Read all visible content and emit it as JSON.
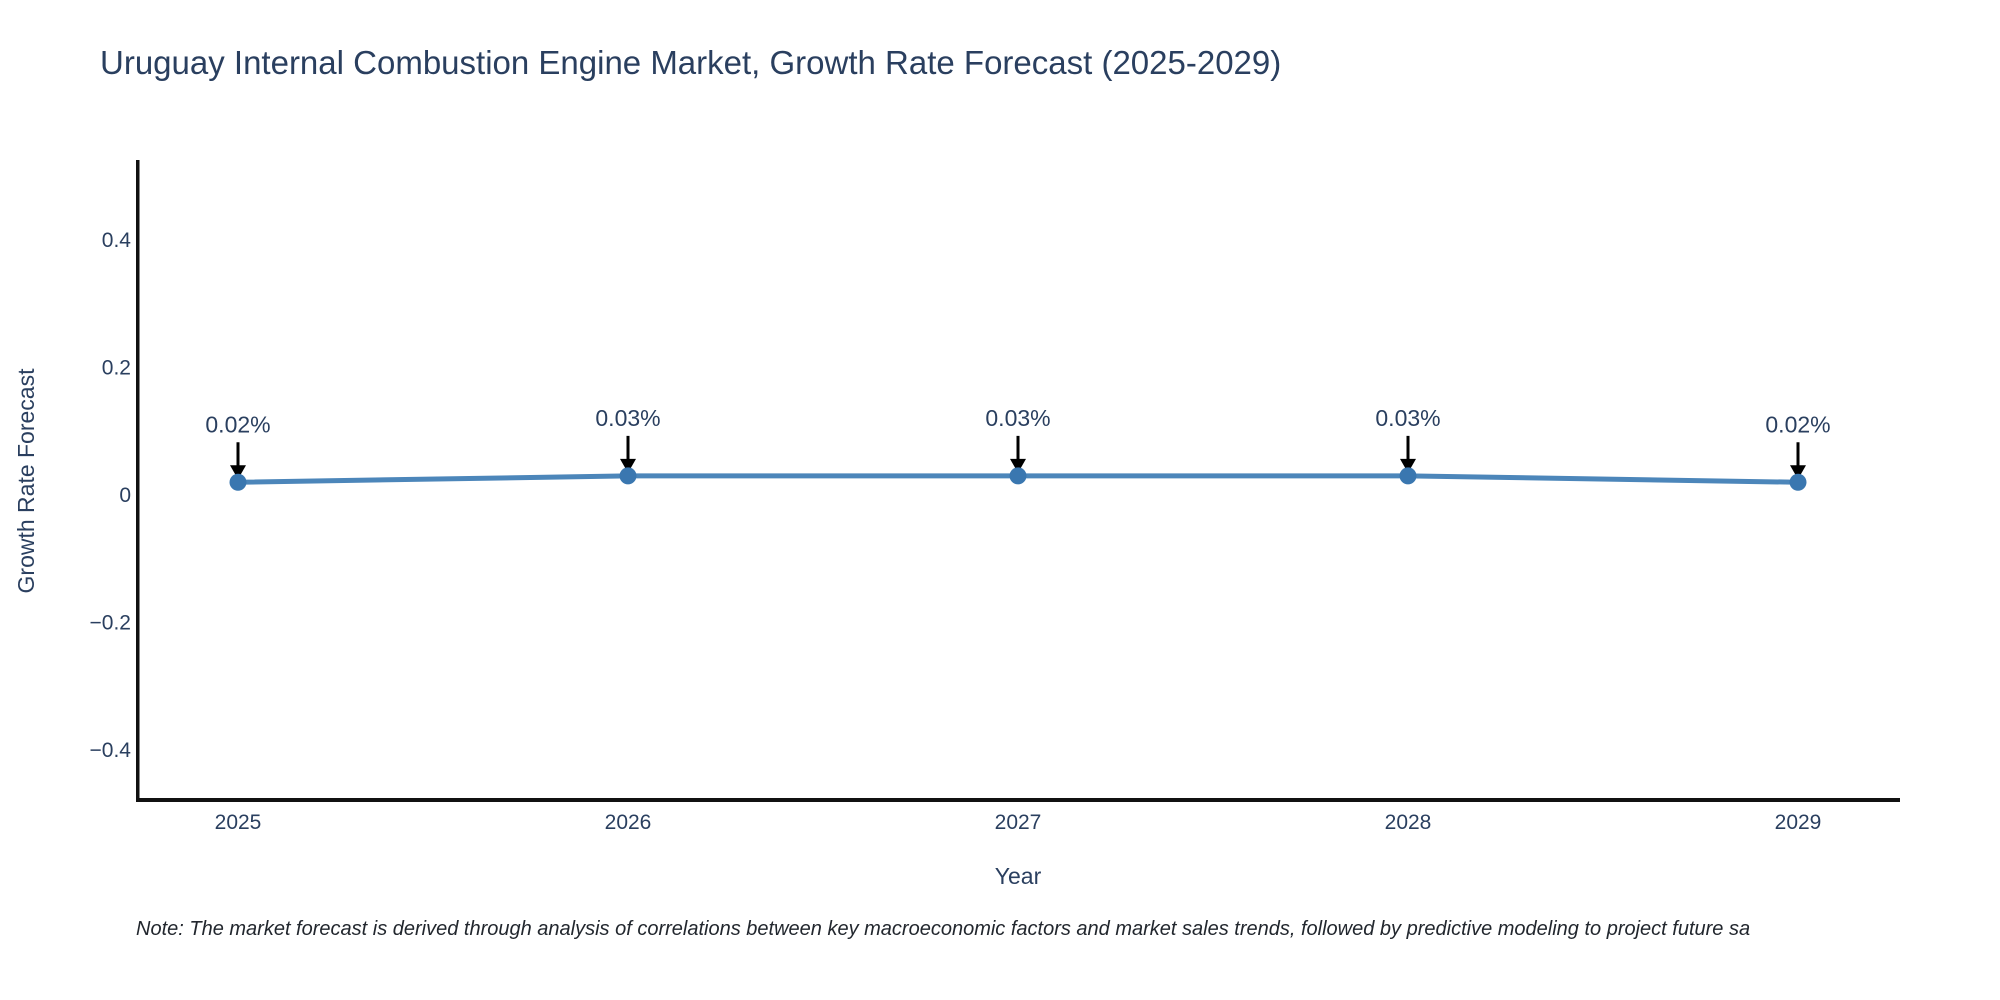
{
  "title": "Uruguay Internal Combustion Engine Market, Growth Rate Forecast (2025-2029)",
  "note": "Note: The market forecast is derived through analysis of correlations between key macroeconomic factors and market sales trends, followed by predictive modeling to project future sa",
  "chart_data": {
    "type": "line",
    "title": "Uruguay Internal Combustion Engine Market, Growth Rate Forecast (2025-2029)",
    "xlabel": "Year",
    "ylabel": "Growth Rate Forecast",
    "x": [
      2025,
      2026,
      2027,
      2028,
      2029
    ],
    "values": [
      0.02,
      0.03,
      0.03,
      0.03,
      0.02
    ],
    "point_labels": [
      "0.02%",
      "0.03%",
      "0.03%",
      "0.03%",
      "0.02%"
    ],
    "xtick_labels": [
      "2025",
      "2026",
      "2027",
      "2028",
      "2029"
    ],
    "yticks": [
      0.4,
      0.2,
      0,
      -0.2,
      -0.4
    ],
    "ytick_labels": [
      "0.4",
      "0.2",
      "0",
      "−0.2",
      "−0.4"
    ],
    "ylim": [
      -0.48,
      0.53
    ],
    "grid": false,
    "legend": "none",
    "colors": {
      "line": "#4c86ba",
      "marker": "#3a77b0",
      "axis_line": "#111111",
      "chart_text": "#2a3f5f",
      "annotation_arrow": "#000000"
    }
  }
}
